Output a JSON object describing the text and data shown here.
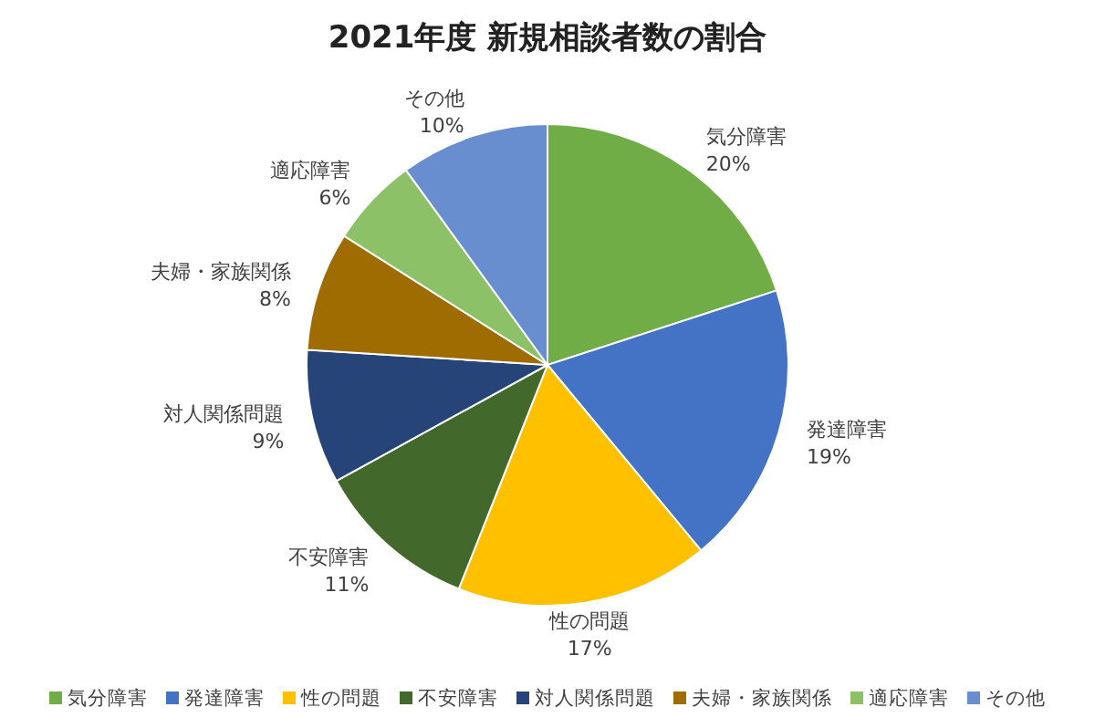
{
  "chart_data": {
    "type": "pie",
    "title": "2021年度  新規相談者数の割合",
    "categories": [
      "気分障害",
      "発達障害",
      "性の問題",
      "不安障害",
      "対人関係問題",
      "夫婦・家族関係",
      "適応障害",
      "その他"
    ],
    "values": [
      20,
      19,
      17,
      11,
      9,
      8,
      6,
      10
    ],
    "value_labels": [
      "20%",
      "19%",
      "17%",
      "11%",
      "9%",
      "8%",
      "6%",
      "10%"
    ],
    "colors": [
      "#70ad47",
      "#4472c4",
      "#ffc000",
      "#43682b",
      "#264478",
      "#9e6c00",
      "#8cc168",
      "#698ed0"
    ],
    "legend": "bottom"
  }
}
